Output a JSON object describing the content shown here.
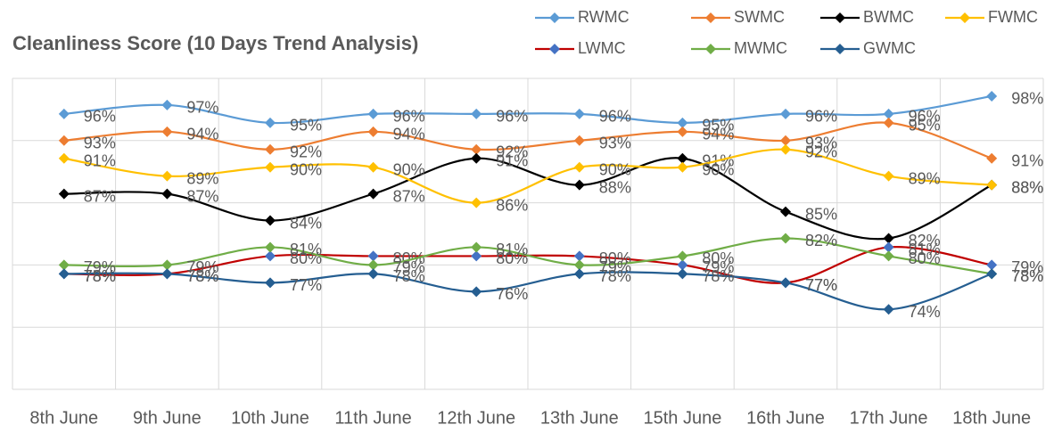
{
  "chart_data": {
    "type": "line",
    "title": "Cleanliness Score (10 Days Trend Analysis)",
    "categories": [
      "8th June",
      "9th June",
      "10th June",
      "11th June",
      "12th June",
      "13th June",
      "15th June",
      "16th June",
      "17th June",
      "18th June"
    ],
    "ylim": [
      65,
      100
    ],
    "yticks": [
      65,
      72,
      79,
      86,
      93,
      100
    ],
    "grid": true,
    "series": [
      {
        "name": "RWMC",
        "color": "#5b9bd5",
        "values": [
          96,
          97,
          95,
          96,
          96,
          96,
          95,
          96,
          96,
          98
        ],
        "value_labels": [
          "96%",
          "97%",
          "95%",
          "96%",
          "96%",
          "96%",
          "95%",
          "96%",
          "96%",
          "98%"
        ]
      },
      {
        "name": "SWMC",
        "color": "#ed7d31",
        "values": [
          93,
          94,
          92,
          94,
          92,
          93,
          94,
          93,
          95,
          91
        ],
        "value_labels": [
          "93%",
          "94%",
          "92%",
          "94%",
          "92%",
          "93%",
          "94%",
          "93%",
          "95%",
          "91%"
        ]
      },
      {
        "name": "BWMC",
        "color": "#000000",
        "values": [
          87,
          87,
          84,
          87,
          91,
          88,
          91,
          85,
          82,
          88
        ],
        "value_labels": [
          "87%",
          "87%",
          "84%",
          "87%",
          "91%",
          "88%",
          "91%",
          "85%",
          "82%",
          "88%"
        ]
      },
      {
        "name": "FWMC",
        "color": "#ffc000",
        "values": [
          91,
          89,
          90,
          90,
          86,
          90,
          90,
          92,
          89,
          88
        ],
        "value_labels": [
          "91%",
          "89%",
          "90%",
          "90%",
          "86%",
          "90%",
          "90%",
          "92%",
          "89%",
          "88%"
        ]
      },
      {
        "name": "LWMC",
        "color": "#c00000",
        "marker_color": "#4472c4",
        "values": [
          78,
          78,
          80,
          80,
          80,
          80,
          79,
          77,
          81,
          79
        ],
        "value_labels": [
          "78%",
          "78%",
          "80%",
          "80%",
          "80%",
          "80%",
          "79%",
          "77%",
          "81%",
          "79%"
        ]
      },
      {
        "name": "MWMC",
        "color": "#70ad47",
        "values": [
          79,
          79,
          81,
          79,
          81,
          79,
          80,
          82,
          80,
          78
        ],
        "value_labels": [
          "79%",
          "79%",
          "81%",
          "79%",
          "81%",
          "79%",
          "80%",
          "82%",
          "80%",
          "78%"
        ]
      },
      {
        "name": "GWMC",
        "color": "#255e91",
        "values": [
          78,
          78,
          77,
          78,
          76,
          78,
          78,
          77,
          74,
          78
        ],
        "value_labels": [
          "78%",
          "78%",
          "77%",
          "78%",
          "76%",
          "78%",
          "78%",
          "77%",
          "74%",
          "78%"
        ]
      }
    ]
  }
}
